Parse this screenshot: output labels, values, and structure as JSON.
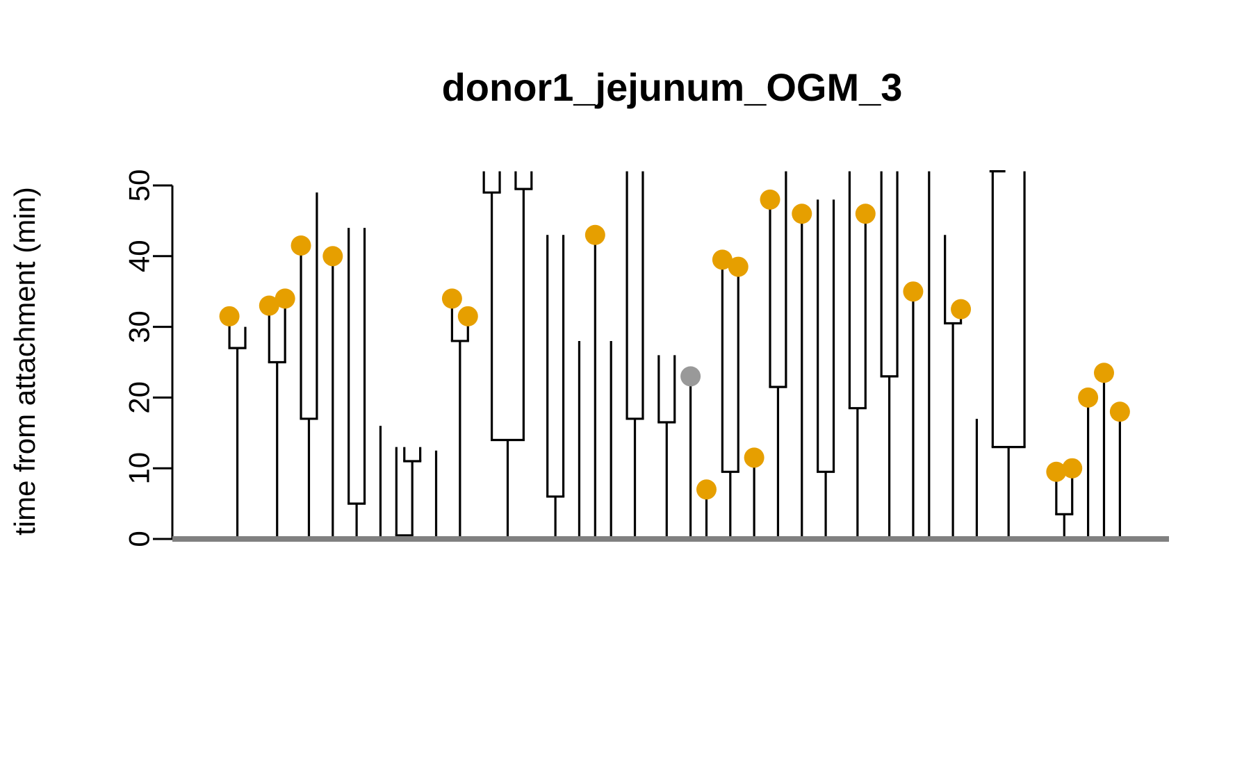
{
  "chart_data": {
    "type": "dendrogram",
    "title": "donor1_jejunum_OGM_3",
    "ylabel": "time from attachment (min)",
    "xlabel": "",
    "ylim": [
      0,
      50
    ],
    "yticks": [
      0,
      10,
      20,
      30,
      40,
      50
    ],
    "ytick_labels": [
      "0",
      "10",
      "20",
      "30",
      "40",
      "50"
    ],
    "colors": {
      "event": "#E69F00",
      "other_event": "#999999",
      "tree": "#000000",
      "baseline": "#808080"
    },
    "lineages": [
      {
        "x": 1.5,
        "y0": 0,
        "y1": 27
      },
      {
        "x": 1.0,
        "y0": 27,
        "y1": 31.5,
        "event": "orange"
      },
      {
        "x": 2.0,
        "y0": 27,
        "y1": 30
      },
      {
        "x": 4.0,
        "y0": 0,
        "y1": 25
      },
      {
        "x": 3.5,
        "y0": 25,
        "y1": 33,
        "event": "orange"
      },
      {
        "x": 4.5,
        "y0": 25,
        "y1": 34,
        "event": "orange"
      },
      {
        "x": 6.0,
        "y0": 0,
        "y1": 17
      },
      {
        "x": 5.5,
        "y0": 17,
        "y1": 41.5,
        "event": "orange"
      },
      {
        "x": 6.5,
        "y0": 17,
        "y1": 49
      },
      {
        "x": 7.5,
        "y0": 0,
        "y1": 40,
        "event": "orange"
      },
      {
        "x": 9.0,
        "y0": 0,
        "y1": 5
      },
      {
        "x": 8.5,
        "y0": 5,
        "y1": 44
      },
      {
        "x": 9.5,
        "y0": 5,
        "y1": 44
      },
      {
        "x": 10.5,
        "y0": 0,
        "y1": 16
      },
      {
        "x": 12.0,
        "y0": 0,
        "y1": 0.5
      },
      {
        "x": 11.5,
        "y0": 0.5,
        "y1": 13
      },
      {
        "x": 12.5,
        "y0": 0.5,
        "y1": 11
      },
      {
        "x": 12.0,
        "y0": 11,
        "y1": 13
      },
      {
        "x": 13.0,
        "y0": 11,
        "y1": 13
      },
      {
        "x": 14.0,
        "y0": 0,
        "y1": 12.5
      },
      {
        "x": 15.5,
        "y0": 0,
        "y1": 28
      },
      {
        "x": 15.0,
        "y0": 28,
        "y1": 34,
        "event": "orange"
      },
      {
        "x": 16.0,
        "y0": 28,
        "y1": 31.5,
        "event": "orange"
      },
      {
        "x": 18.5,
        "y0": 0,
        "y1": 14
      },
      {
        "x": 17.5,
        "y0": 14,
        "y1": 49
      },
      {
        "x": 17.0,
        "y0": 49,
        "y1": 52
      },
      {
        "x": 18.0,
        "y0": 49,
        "y1": 52
      },
      {
        "x": 19.5,
        "y0": 14,
        "y1": 49.5
      },
      {
        "x": 19.0,
        "y0": 49.5,
        "y1": 52
      },
      {
        "x": 20.0,
        "y0": 49.5,
        "y1": 52
      },
      {
        "x": 21.5,
        "y0": 0,
        "y1": 6
      },
      {
        "x": 21.0,
        "y0": 6,
        "y1": 43
      },
      {
        "x": 22.0,
        "y0": 6,
        "y1": 43
      },
      {
        "x": 23.0,
        "y0": 0,
        "y1": 28
      },
      {
        "x": 24.0,
        "y0": 0,
        "y1": 43,
        "event": "orange"
      },
      {
        "x": 25.0,
        "y0": 0,
        "y1": 28
      },
      {
        "x": 26.5,
        "y0": 0,
        "y1": 17
      },
      {
        "x": 26.0,
        "y0": 17,
        "y1": 52
      },
      {
        "x": 27.0,
        "y0": 17,
        "y1": 52
      },
      {
        "x": 28.5,
        "y0": 0,
        "y1": 16.5
      },
      {
        "x": 28.0,
        "y0": 16.5,
        "y1": 26
      },
      {
        "x": 29.0,
        "y0": 16.5,
        "y1": 26
      },
      {
        "x": 30.0,
        "y0": 0,
        "y1": 23,
        "event": "grey"
      },
      {
        "x": 31.0,
        "y0": 0,
        "y1": 7,
        "event": "orange"
      },
      {
        "x": 32.5,
        "y0": 0,
        "y1": 9.5
      },
      {
        "x": 32.0,
        "y0": 9.5,
        "y1": 39.5,
        "event": "orange"
      },
      {
        "x": 33.0,
        "y0": 9.5,
        "y1": 38.5,
        "event": "orange"
      },
      {
        "x": 34.0,
        "y0": 0,
        "y1": 11.5,
        "event": "orange"
      },
      {
        "x": 35.5,
        "y0": 0,
        "y1": 21.5
      },
      {
        "x": 35.0,
        "y0": 21.5,
        "y1": 48,
        "event": "orange"
      },
      {
        "x": 36.0,
        "y0": 21.5,
        "y1": 52
      },
      {
        "x": 37.0,
        "y0": 0,
        "y1": 46,
        "event": "orange"
      },
      {
        "x": 38.5,
        "y0": 0,
        "y1": 9.5
      },
      {
        "x": 38.0,
        "y0": 9.5,
        "y1": 48
      },
      {
        "x": 39.0,
        "y0": 9.5,
        "y1": 48
      },
      {
        "x": 40.5,
        "y0": 0,
        "y1": 18.5
      },
      {
        "x": 40.0,
        "y0": 18.5,
        "y1": 52
      },
      {
        "x": 41.0,
        "y0": 18.5,
        "y1": 46,
        "event": "orange"
      },
      {
        "x": 42.5,
        "y0": 0,
        "y1": 23
      },
      {
        "x": 42.0,
        "y0": 23,
        "y1": 52
      },
      {
        "x": 43.0,
        "y0": 23,
        "y1": 52
      },
      {
        "x": 44.0,
        "y0": 0,
        "y1": 35,
        "event": "orange"
      },
      {
        "x": 45.0,
        "y0": 0,
        "y1": 52
      },
      {
        "x": 46.5,
        "y0": 0,
        "y1": 30.5
      },
      {
        "x": 46.0,
        "y0": 30.5,
        "y1": 43
      },
      {
        "x": 47.0,
        "y0": 30.5,
        "y1": 32.5,
        "event": "orange"
      },
      {
        "x": 48.0,
        "y0": 0,
        "y1": 17
      },
      {
        "x": 50.0,
        "y0": 0,
        "y1": 13
      },
      {
        "x": 49.0,
        "y0": 13,
        "y1": 52
      },
      {
        "x": 51.0,
        "y0": 13,
        "y1": 52
      },
      {
        "x": 53.5,
        "y0": 0,
        "y1": 3.5
      },
      {
        "x": 53.0,
        "y0": 3.5,
        "y1": 9.5,
        "event": "orange"
      },
      {
        "x": 54.0,
        "y0": 3.5,
        "y1": 10,
        "event": "orange"
      },
      {
        "x": 55.0,
        "y0": 0,
        "y1": 20,
        "event": "orange"
      },
      {
        "x": 56.0,
        "y0": 0,
        "y1": 23.5,
        "event": "orange"
      },
      {
        "x": 57.0,
        "y0": 0,
        "y1": 18,
        "event": "orange"
      }
    ],
    "splits": [
      {
        "x1": 1.0,
        "x2": 2.0,
        "y": 27
      },
      {
        "x1": 3.5,
        "x2": 4.5,
        "y": 25
      },
      {
        "x1": 5.5,
        "x2": 6.5,
        "y": 17
      },
      {
        "x1": 8.5,
        "x2": 9.5,
        "y": 5
      },
      {
        "x1": 11.5,
        "x2": 12.5,
        "y": 0.5
      },
      {
        "x1": 12.0,
        "x2": 13.0,
        "y": 11
      },
      {
        "x1": 15.0,
        "x2": 16.0,
        "y": 28
      },
      {
        "x1": 17.5,
        "x2": 19.5,
        "y": 14
      },
      {
        "x1": 17.0,
        "x2": 18.0,
        "y": 49
      },
      {
        "x1": 19.0,
        "x2": 20.0,
        "y": 49.5
      },
      {
        "x1": 21.0,
        "x2": 22.0,
        "y": 6
      },
      {
        "x1": 26.0,
        "x2": 27.0,
        "y": 17
      },
      {
        "x1": 28.0,
        "x2": 29.0,
        "y": 16.5
      },
      {
        "x1": 32.0,
        "x2": 33.0,
        "y": 9.5
      },
      {
        "x1": 35.0,
        "x2": 36.0,
        "y": 21.5
      },
      {
        "x1": 38.0,
        "x2": 39.0,
        "y": 9.5
      },
      {
        "x1": 40.0,
        "x2": 41.0,
        "y": 18.5
      },
      {
        "x1": 42.0,
        "x2": 43.0,
        "y": 23
      },
      {
        "x1": 46.0,
        "x2": 47.0,
        "y": 30.5
      },
      {
        "x1": 49.0,
        "x2": 51.0,
        "y": 13
      },
      {
        "x1": 53.0,
        "x2": 54.0,
        "y": 3.5
      }
    ],
    "caps": [
      {
        "x1": 48.8,
        "x2": 49.8,
        "y": 52
      }
    ],
    "x_range": [
      -2.5,
      60
    ]
  }
}
